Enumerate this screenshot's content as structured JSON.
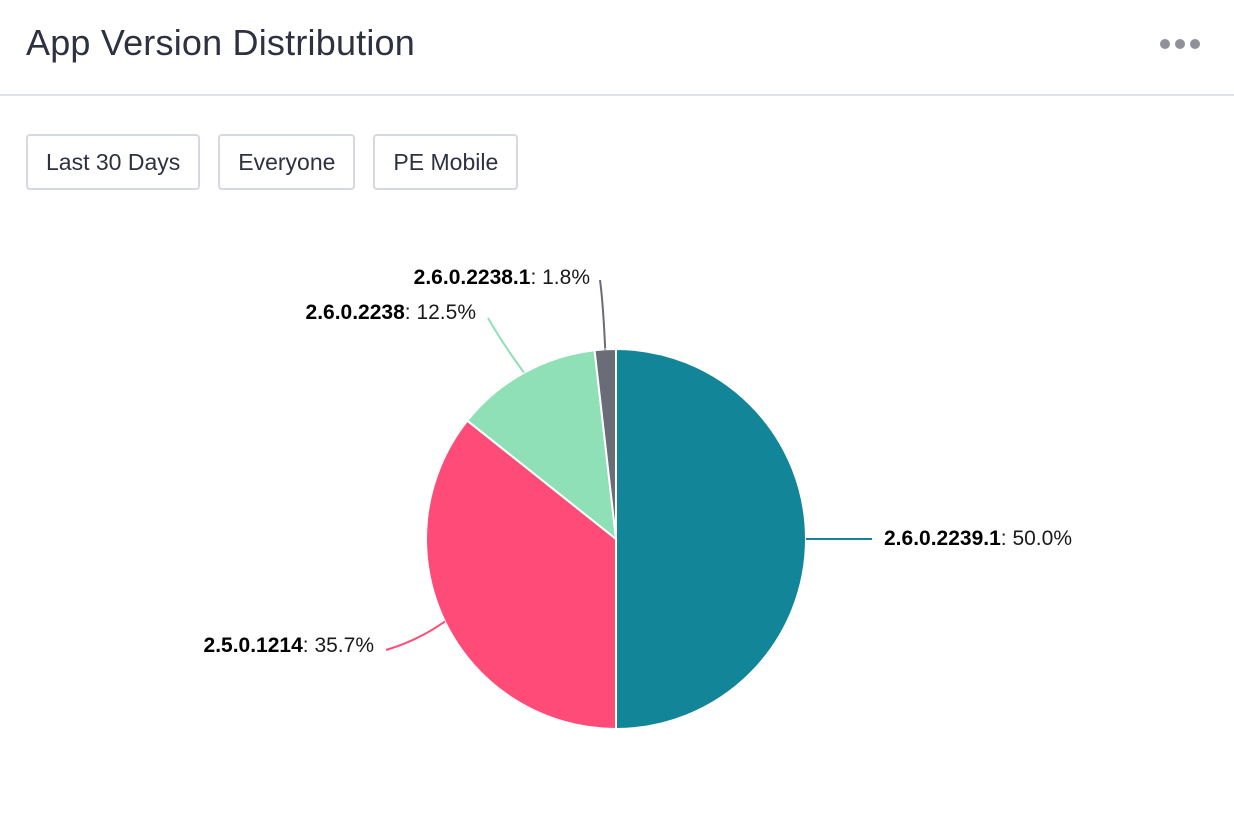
{
  "header": {
    "title": "App Version Distribution",
    "more_icon": "more-horizontal-icon"
  },
  "filters": [
    {
      "label": "Last 30 Days"
    },
    {
      "label": "Everyone"
    },
    {
      "label": "PE Mobile"
    }
  ],
  "chart_data": {
    "type": "pie",
    "slices": [
      {
        "name": "2.6.0.2239.1",
        "value": 50.0,
        "label": "50.0%",
        "color": "#138599"
      },
      {
        "name": "2.5.0.1214",
        "value": 35.7,
        "label": "35.7%",
        "color": "#fe4b78"
      },
      {
        "name": "2.6.0.2238",
        "value": 12.5,
        "label": "12.5%",
        "color": "#8fe0b6"
      },
      {
        "name": "2.6.0.2238.1",
        "value": 1.8,
        "label": "1.8%",
        "color": "#6a6d77"
      }
    ]
  }
}
